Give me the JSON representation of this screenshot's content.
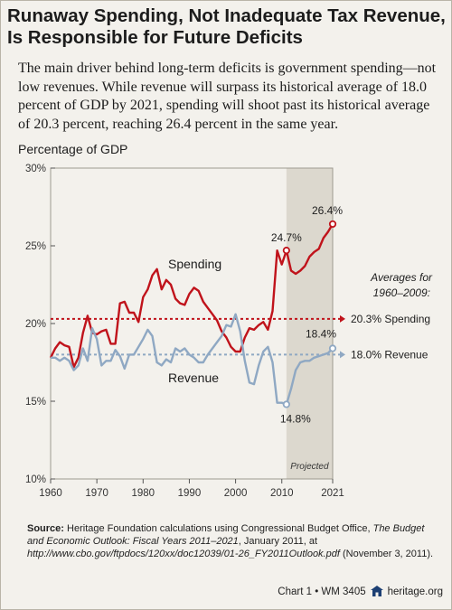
{
  "header": {
    "title_line1": "Runaway Spending, Not Inadequate Tax Revenue,",
    "title_line2": "Is Responsible for Future Deficits",
    "subtitle": "The main driver behind long-term deficits is government spending—not low revenues. While revenue will surpass its historical average of 18.0 percent of GDP by 2021, spending will shoot past its historical average of 20.3 percent, reaching 26.4 percent in the same year."
  },
  "chart_data": {
    "type": "line",
    "ylabel": "Percentage of GDP",
    "xlim": [
      1960,
      2021
    ],
    "ylim": [
      10,
      30
    ],
    "x_ticks": [
      1960,
      1970,
      1980,
      1990,
      2000,
      2010,
      2021
    ],
    "y_ticks": [
      10,
      15,
      20,
      25,
      30
    ],
    "y_tick_labels": [
      "10%",
      "15%",
      "20%",
      "25%",
      "30%"
    ],
    "grid": false,
    "projected_from": 2011,
    "projected_label": "Projected",
    "colors": {
      "spending": "#c0131b",
      "revenue": "#8fa8c3",
      "shade": "#dcd8ce"
    },
    "series": [
      {
        "name": "Spending",
        "x": [
          1960,
          1961,
          1962,
          1963,
          1964,
          1965,
          1966,
          1967,
          1968,
          1969,
          1970,
          1971,
          1972,
          1973,
          1974,
          1975,
          1976,
          1977,
          1978,
          1979,
          1980,
          1981,
          1982,
          1983,
          1984,
          1985,
          1986,
          1987,
          1988,
          1989,
          1990,
          1991,
          1992,
          1993,
          1994,
          1995,
          1996,
          1997,
          1998,
          1999,
          2000,
          2001,
          2002,
          2003,
          2004,
          2005,
          2006,
          2007,
          2008,
          2009,
          2010,
          2011,
          2012,
          2013,
          2014,
          2015,
          2016,
          2017,
          2018,
          2019,
          2020,
          2021
        ],
        "values": [
          17.8,
          18.4,
          18.8,
          18.6,
          18.5,
          17.2,
          17.8,
          19.4,
          20.5,
          19.4,
          19.3,
          19.5,
          19.6,
          18.7,
          18.7,
          21.3,
          21.4,
          20.7,
          20.7,
          20.1,
          21.7,
          22.2,
          23.1,
          23.5,
          22.2,
          22.8,
          22.5,
          21.6,
          21.3,
          21.2,
          21.9,
          22.3,
          22.1,
          21.4,
          21.0,
          20.6,
          20.2,
          19.5,
          19.1,
          18.5,
          18.2,
          18.2,
          19.1,
          19.7,
          19.6,
          19.9,
          20.1,
          19.6,
          20.8,
          24.7,
          23.8,
          24.7,
          23.4,
          23.2,
          23.4,
          23.7,
          24.3,
          24.6,
          24.8,
          25.5,
          25.9,
          26.4
        ]
      },
      {
        "name": "Revenue",
        "x": [
          1960,
          1961,
          1962,
          1963,
          1964,
          1965,
          1966,
          1967,
          1968,
          1969,
          1970,
          1971,
          1972,
          1973,
          1974,
          1975,
          1976,
          1977,
          1978,
          1979,
          1980,
          1981,
          1982,
          1983,
          1984,
          1985,
          1986,
          1987,
          1988,
          1989,
          1990,
          1991,
          1992,
          1993,
          1994,
          1995,
          1996,
          1997,
          1998,
          1999,
          2000,
          2001,
          2002,
          2003,
          2004,
          2005,
          2006,
          2007,
          2008,
          2009,
          2010,
          2011,
          2012,
          2013,
          2014,
          2015,
          2016,
          2017,
          2018,
          2019,
          2020,
          2021
        ],
        "values": [
          17.8,
          17.8,
          17.6,
          17.8,
          17.6,
          17.0,
          17.3,
          18.4,
          17.6,
          19.7,
          19.0,
          17.3,
          17.6,
          17.6,
          18.3,
          17.9,
          17.1,
          18.0,
          18.0,
          18.5,
          19.0,
          19.6,
          19.2,
          17.5,
          17.3,
          17.7,
          17.5,
          18.4,
          18.2,
          18.4,
          18.0,
          17.8,
          17.5,
          17.5,
          18.0,
          18.4,
          18.8,
          19.2,
          19.9,
          19.8,
          20.6,
          19.5,
          17.6,
          16.2,
          16.1,
          17.3,
          18.2,
          18.5,
          17.5,
          14.9,
          14.9,
          14.8,
          15.8,
          17.0,
          17.5,
          17.6,
          17.6,
          17.8,
          17.9,
          18.0,
          18.1,
          18.4
        ]
      }
    ],
    "averages": {
      "heading": "Averages for 1960–2009:",
      "heading_line1": "Averages for",
      "heading_line2": "1960–2009:",
      "spending": {
        "value": 20.3,
        "label": "20.3% Spending"
      },
      "revenue": {
        "value": 18.0,
        "label": "18.0% Revenue"
      }
    },
    "annotations": [
      {
        "x": 2011,
        "y": 24.7,
        "text": "24.7%",
        "series": "Spending"
      },
      {
        "x": 2021,
        "y": 26.4,
        "text": "26.4%",
        "series": "Spending"
      },
      {
        "x": 2011,
        "y": 14.8,
        "text": "14.8%",
        "series": "Revenue"
      },
      {
        "x": 2021,
        "y": 18.4,
        "text": "18.4%",
        "series": "Revenue"
      }
    ],
    "series_labels": [
      {
        "series": "Spending",
        "text": "Spending"
      },
      {
        "series": "Revenue",
        "text": "Revenue"
      }
    ]
  },
  "source": {
    "label": "Source:",
    "text": " Heritage Foundation calculations using Congressional Budget Office, ",
    "title": "The Budget and Economic Outlook: Fiscal Years 2011–2021",
    "date": ", January 2011, at ",
    "url": "http://www.cbo.gov/ftpdocs/120xx/doc12039/01-26_FY2011Outlook.pdf",
    "accessed": " (November 3, 2011)."
  },
  "footer": {
    "text": "Chart 1 • WM 3405",
    "site": "heritage.org",
    "icon": "house-icon"
  }
}
